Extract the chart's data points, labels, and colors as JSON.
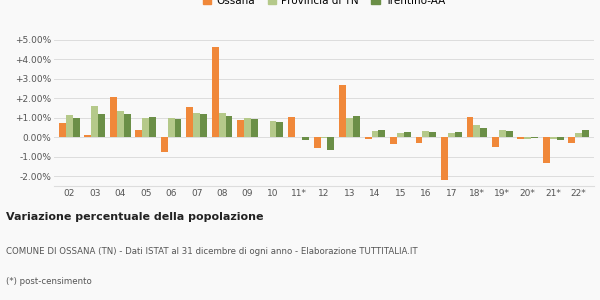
{
  "categories": [
    "02",
    "03",
    "04",
    "05",
    "06",
    "07",
    "08",
    "09",
    "10",
    "11*",
    "12",
    "13",
    "14",
    "15",
    "16",
    "17",
    "18*",
    "19*",
    "20*",
    "21*",
    "22*"
  ],
  "ossana": [
    0.75,
    0.1,
    2.05,
    0.35,
    -0.75,
    1.55,
    4.65,
    0.9,
    0.0,
    1.05,
    -0.55,
    2.7,
    -0.1,
    -0.35,
    -0.3,
    -2.2,
    1.05,
    -0.5,
    -0.1,
    -1.3,
    -0.3
  ],
  "provincia": [
    1.15,
    1.6,
    1.35,
    1.0,
    1.0,
    1.25,
    1.25,
    1.0,
    0.85,
    0.0,
    -0.05,
    1.0,
    0.3,
    0.2,
    0.3,
    0.2,
    0.65,
    0.35,
    -0.1,
    -0.1,
    0.2
  ],
  "trentino": [
    1.0,
    1.2,
    1.2,
    1.05,
    0.95,
    1.2,
    1.1,
    0.95,
    0.8,
    -0.15,
    -0.65,
    1.1,
    0.35,
    0.25,
    0.25,
    0.25,
    0.5,
    0.3,
    -0.05,
    -0.15,
    0.35
  ],
  "ossana_color": "#f0883a",
  "provincia_color": "#b5c98a",
  "trentino_color": "#6b8f47",
  "legend_labels": [
    "Ossana",
    "Provincia di TN",
    "Trentino-AA"
  ],
  "ylim": [
    -2.5,
    5.5
  ],
  "yticks": [
    -2.0,
    -1.0,
    0.0,
    1.0,
    2.0,
    3.0,
    4.0,
    5.0
  ],
  "title1": "Variazione percentuale della popolazione",
  "title2": "COMUNE DI OSSANA (TN) - Dati ISTAT al 31 dicembre di ogni anno - Elaborazione TUTTITALIA.IT",
  "title3": "(*) post-censimento",
  "bg_color": "#f9f9f9",
  "grid_color": "#dddddd",
  "bar_width": 0.27
}
